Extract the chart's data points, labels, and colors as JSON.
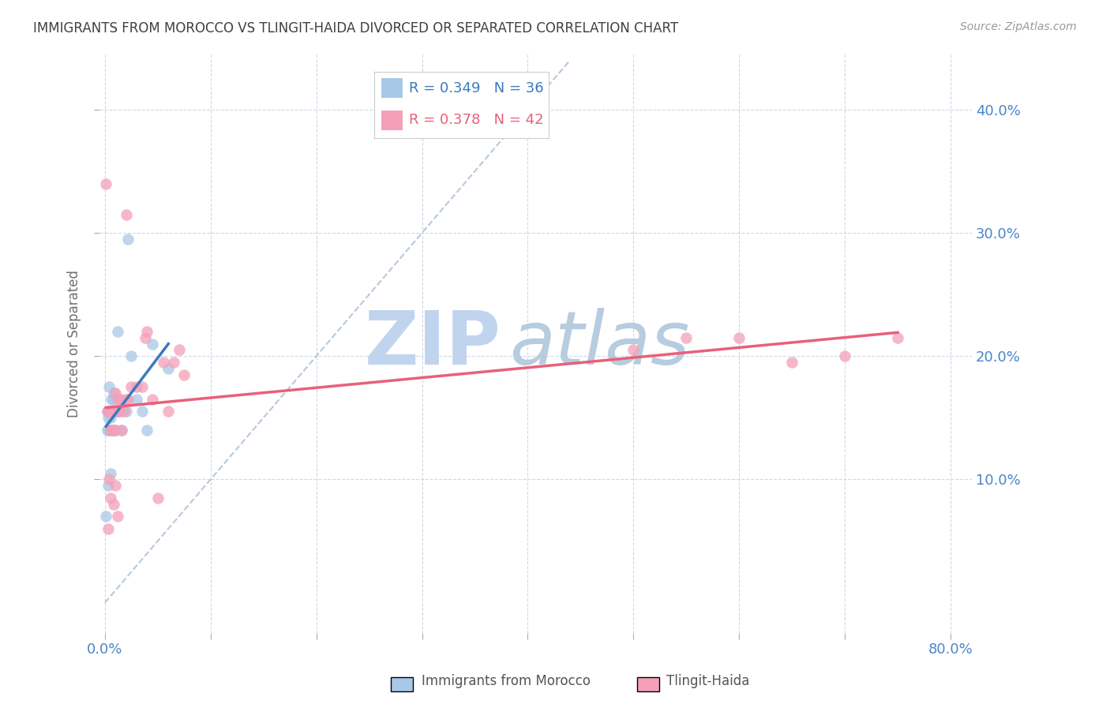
{
  "title": "IMMIGRANTS FROM MOROCCO VS TLINGIT-HAIDA DIVORCED OR SEPARATED CORRELATION CHART",
  "source": "Source: ZipAtlas.com",
  "ylabel": "Divorced or Separated",
  "ytick_labels": [
    "10.0%",
    "20.0%",
    "30.0%",
    "40.0%"
  ],
  "ytick_values": [
    0.1,
    0.2,
    0.3,
    0.4
  ],
  "xtick_values": [
    0.0,
    0.1,
    0.2,
    0.3,
    0.4,
    0.5,
    0.6,
    0.7,
    0.8
  ],
  "xtick_show_labels": [
    true,
    false,
    false,
    false,
    false,
    false,
    false,
    false,
    true
  ],
  "xlim": [
    -0.005,
    0.82
  ],
  "ylim": [
    -0.025,
    0.445
  ],
  "legend_r1": "R = 0.349",
  "legend_n1": "N = 36",
  "legend_r2": "R = 0.378",
  "legend_n2": "N = 42",
  "blue_color": "#a8c8e8",
  "pink_color": "#f4a0b8",
  "blue_line_color": "#3a7abf",
  "pink_line_color": "#e8607a",
  "dashed_line_color": "#b8c8e0",
  "watermark_zip": "ZIP",
  "watermark_atlas": "atlas",
  "watermark_color_zip": "#c0d4ee",
  "watermark_color_atlas": "#b8cce0",
  "background_color": "#ffffff",
  "grid_color": "#d0d8e8",
  "tick_label_color": "#4a86c8",
  "title_color": "#404040",
  "axis_label_color": "#707070",
  "blue_scatter_x": [
    0.001,
    0.002,
    0.002,
    0.003,
    0.003,
    0.004,
    0.004,
    0.004,
    0.005,
    0.005,
    0.005,
    0.005,
    0.006,
    0.006,
    0.006,
    0.007,
    0.007,
    0.008,
    0.008,
    0.009,
    0.01,
    0.01,
    0.012,
    0.013,
    0.015,
    0.016,
    0.02,
    0.022,
    0.025,
    0.03,
    0.035,
    0.04,
    0.045,
    0.06,
    0.003,
    0.005
  ],
  "blue_scatter_y": [
    0.07,
    0.14,
    0.155,
    0.14,
    0.15,
    0.155,
    0.155,
    0.175,
    0.14,
    0.155,
    0.14,
    0.15,
    0.14,
    0.155,
    0.165,
    0.14,
    0.155,
    0.165,
    0.17,
    0.14,
    0.14,
    0.155,
    0.22,
    0.155,
    0.155,
    0.14,
    0.155,
    0.295,
    0.2,
    0.165,
    0.155,
    0.14,
    0.21,
    0.19,
    0.095,
    0.105
  ],
  "pink_scatter_x": [
    0.001,
    0.002,
    0.003,
    0.004,
    0.005,
    0.006,
    0.007,
    0.008,
    0.009,
    0.01,
    0.012,
    0.013,
    0.015,
    0.016,
    0.018,
    0.02,
    0.022,
    0.025,
    0.03,
    0.035,
    0.038,
    0.04,
    0.045,
    0.05,
    0.055,
    0.06,
    0.065,
    0.07,
    0.075,
    0.003,
    0.004,
    0.005,
    0.008,
    0.01,
    0.012,
    0.02,
    0.5,
    0.55,
    0.6,
    0.65,
    0.7,
    0.75
  ],
  "pink_scatter_y": [
    0.34,
    0.155,
    0.155,
    0.155,
    0.14,
    0.155,
    0.14,
    0.155,
    0.14,
    0.17,
    0.165,
    0.155,
    0.165,
    0.14,
    0.155,
    0.165,
    0.165,
    0.175,
    0.175,
    0.175,
    0.215,
    0.22,
    0.165,
    0.085,
    0.195,
    0.155,
    0.195,
    0.205,
    0.185,
    0.06,
    0.1,
    0.085,
    0.08,
    0.095,
    0.07,
    0.315,
    0.205,
    0.215,
    0.215,
    0.195,
    0.2,
    0.215
  ],
  "blue_trend_x": [
    0.001,
    0.06
  ],
  "blue_trend_slope": 1.8,
  "blue_trend_intercept": 0.135,
  "pink_trend_x": [
    0.001,
    0.75
  ],
  "pink_trend_slope": 0.085,
  "pink_trend_intercept": 0.148
}
